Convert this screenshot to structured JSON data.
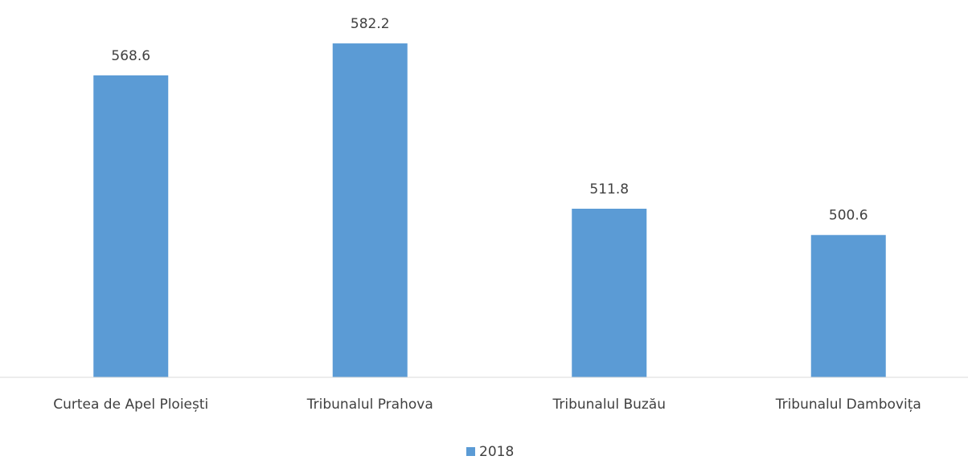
{
  "chart_data": {
    "type": "bar",
    "categories": [
      "Curtea de Apel Ploiești",
      "Tribunalul Prahova",
      "Tribunalul Buzău",
      "Tribunalul Dambovița"
    ],
    "series": [
      {
        "name": "2018",
        "color": "#5b9bd5",
        "values": [
          568.6,
          582.2,
          511.8,
          500.6
        ]
      }
    ],
    "ylim": [
      440,
      600
    ],
    "legend": "bottom"
  }
}
